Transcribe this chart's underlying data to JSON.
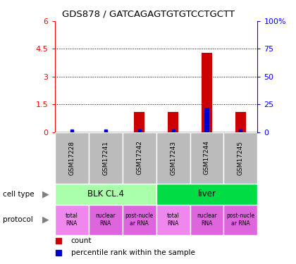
{
  "title": "GDS878 / GATCAGAGTGTGTCCTGCTT",
  "samples": [
    "GSM17228",
    "GSM17241",
    "GSM17242",
    "GSM17243",
    "GSM17244",
    "GSM17245"
  ],
  "counts": [
    0,
    0,
    1.1,
    1.1,
    4.3,
    1.1
  ],
  "percentile_ranks": [
    0,
    0,
    0.4,
    0.4,
    22,
    0.4
  ],
  "ylim_left": [
    0,
    6
  ],
  "ylim_right": [
    0,
    100
  ],
  "yticks_left": [
    0,
    1.5,
    3,
    4.5,
    6
  ],
  "ytick_labels_left": [
    "0",
    "1.5",
    "3",
    "4.5",
    "6"
  ],
  "yticks_right": [
    0,
    25,
    50,
    75,
    100
  ],
  "ytick_labels_right": [
    "0",
    "25",
    "50",
    "75",
    "100%"
  ],
  "cell_type_groups": [
    {
      "label": "BLK CL.4",
      "start": 0,
      "end": 3,
      "color": "#aaffaa"
    },
    {
      "label": "liver",
      "start": 3,
      "end": 6,
      "color": "#00dd44"
    }
  ],
  "protocol_colors": [
    "#ee88ee",
    "#dd66dd",
    "#dd66dd",
    "#ee88ee",
    "#dd66dd",
    "#dd66dd"
  ],
  "protocol_labels": [
    "total\nRNA",
    "nuclear\nRNA",
    "post-nucle\nar RNA",
    "total\nRNA",
    "nuclear\nRNA",
    "post-nucle\nar RNA"
  ],
  "bar_color": "#cc0000",
  "dot_color": "#0000cc",
  "sample_bg_color": "#bbbbbb",
  "cell_type_label": "cell type",
  "protocol_label": "protocol",
  "legend_count_label": "count",
  "legend_percentile_label": "percentile rank within the sample"
}
